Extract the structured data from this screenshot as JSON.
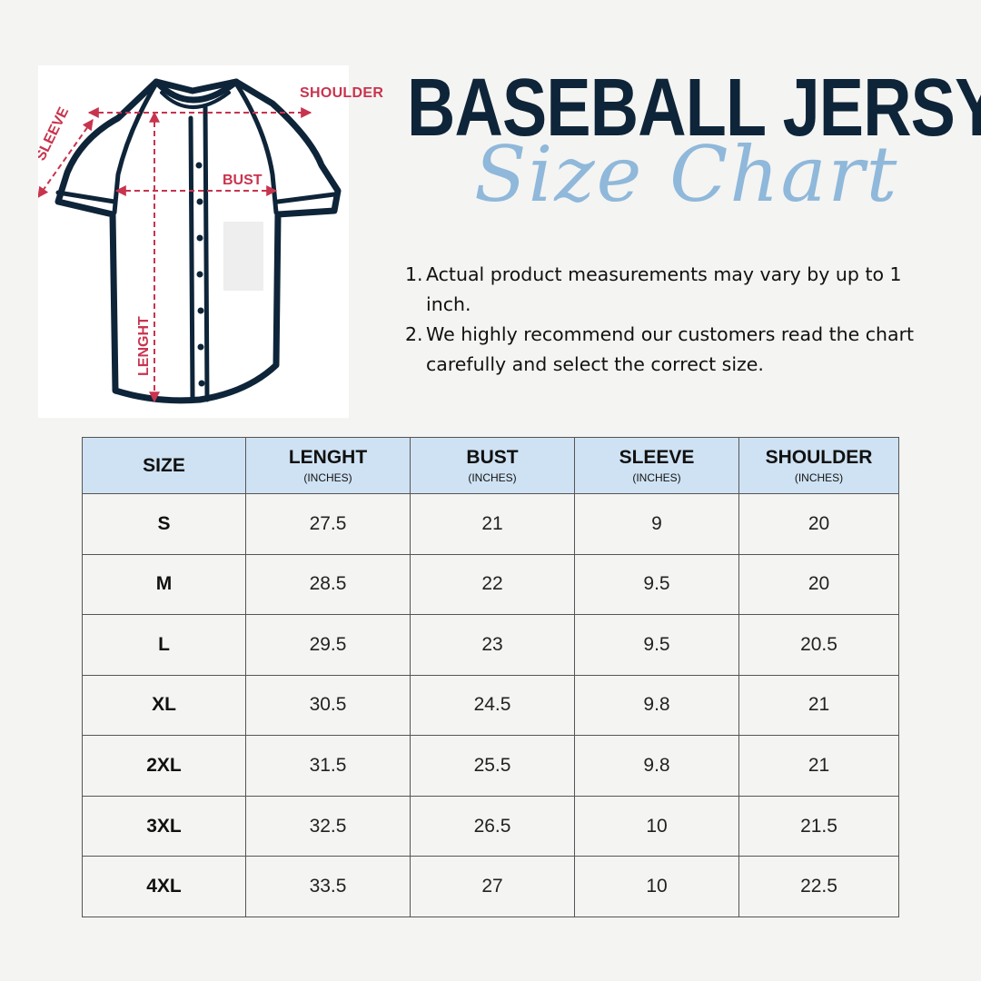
{
  "title": "BASEBALL JERSY",
  "subtitle": "Size Chart",
  "diagram_labels": {
    "shoulder": "SHOULDER",
    "sleeve": "SLEEVE",
    "bust": "BUST",
    "length": "LENGHT"
  },
  "notes": [
    {
      "num": "1.",
      "text": "Actual product measurements may vary by up to 1 inch."
    },
    {
      "num": "2.",
      "text": "We highly recommend our customers read the chart carefully and select the correct size."
    }
  ],
  "table": {
    "headers": [
      {
        "label": "SIZE",
        "unit": ""
      },
      {
        "label": "LENGHT",
        "unit": "(INCHES)"
      },
      {
        "label": "BUST",
        "unit": "(INCHES)"
      },
      {
        "label": "SLEEVE",
        "unit": "(INCHES)"
      },
      {
        "label": "SHOULDER",
        "unit": "(INCHES)"
      }
    ],
    "rows": [
      [
        "S",
        "27.5",
        "21",
        "9",
        "20"
      ],
      [
        "M",
        "28.5",
        "22",
        "9.5",
        "20"
      ],
      [
        "L",
        "29.5",
        "23",
        "9.5",
        "20.5"
      ],
      [
        "XL",
        "30.5",
        "24.5",
        "9.8",
        "21"
      ],
      [
        "2XL",
        "31.5",
        "25.5",
        "9.8",
        "21"
      ],
      [
        "3XL",
        "32.5",
        "26.5",
        "10",
        "21.5"
      ],
      [
        "4XL",
        "33.5",
        "27",
        "10",
        "22.5"
      ]
    ]
  },
  "colors": {
    "title": "#0e2438",
    "subtitle": "#8fb8da",
    "measure_lines": "#c8344e",
    "header_bg": "#cfe2f3",
    "page_bg": "#f4f4f2"
  }
}
